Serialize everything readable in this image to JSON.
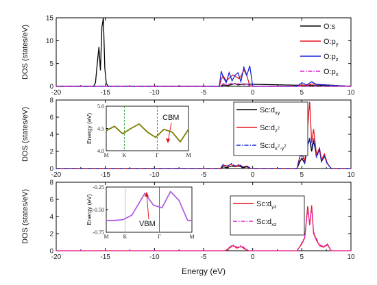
{
  "chart_data": [
    {
      "type": "line",
      "panel": "top",
      "ylabel": "DOS (states/eV)",
      "xlim": [
        -20,
        10
      ],
      "ylim": [
        0,
        15
      ],
      "xticks": [
        "-20",
        "-15",
        "-10",
        "-5",
        "0",
        "5",
        "10"
      ],
      "yticks": [
        "0",
        "5",
        "10",
        "15"
      ],
      "legend_position": "top-right",
      "series": [
        {
          "name": "O:s",
          "color": "#000000",
          "dash": "solid",
          "x": [
            -20,
            -16.2,
            -16.0,
            -15.8,
            -15.65,
            -15.5,
            -15.35,
            -15.2,
            -15.05,
            -14.9,
            -14.7,
            -5,
            -3.3,
            -3.0,
            -2.5,
            -1.8,
            -1.5,
            -1.0,
            10
          ],
          "y": [
            0,
            0,
            0.8,
            5.5,
            8.6,
            3.5,
            13.0,
            15.0,
            4.0,
            0.6,
            0,
            0,
            0,
            0.3,
            0.2,
            0.6,
            0.3,
            0.5,
            0
          ]
        },
        {
          "name": "O:p_y",
          "color": "#e8141c",
          "dash": "solid",
          "x": [
            -20,
            -3.4,
            -3.2,
            -3.0,
            -2.7,
            -2.3,
            -2.0,
            -1.7,
            -1.4,
            -1.2,
            -0.9,
            -0.6,
            -0.3,
            0,
            4.5,
            5.0,
            5.5,
            6.0,
            10
          ],
          "y": [
            0,
            0,
            1.5,
            2.3,
            1.2,
            2.0,
            2.5,
            2.1,
            1.7,
            2.2,
            3.6,
            2.3,
            0.2,
            0,
            0,
            0.3,
            0.2,
            0.5,
            0
          ]
        },
        {
          "name": "O:p_z",
          "color": "#1826d6",
          "dash": "solid",
          "x": [
            -20,
            -3.4,
            -3.2,
            -3.0,
            -2.7,
            -2.4,
            -2.1,
            -1.8,
            -1.5,
            -1.2,
            -0.9,
            -0.6,
            -0.3,
            0,
            4.5,
            5.0,
            5.5,
            6.0,
            6.5,
            10
          ],
          "y": [
            0,
            0,
            3.3,
            2.0,
            0.8,
            3.0,
            1.2,
            2.4,
            3.0,
            1.0,
            4.2,
            2.4,
            4.5,
            0,
            0,
            0.8,
            0.3,
            1.0,
            0.4,
            0
          ]
        },
        {
          "name": "O:p_x",
          "color": "#e020c8",
          "dash": "dashdot",
          "x": [
            -20,
            -3.3,
            -3.0,
            -2.6,
            -2.2,
            -1.8,
            -1.4,
            -1.0,
            -0.6,
            -0.2,
            10
          ],
          "y": [
            0,
            0,
            0.6,
            0.3,
            0.7,
            0.4,
            0.6,
            0.3,
            0.5,
            0,
            0
          ]
        }
      ]
    },
    {
      "type": "line",
      "panel": "middle",
      "ylabel": "DOS (states/eV)",
      "xlim": [
        -20,
        10
      ],
      "ylim": [
        0,
        8
      ],
      "xticks": [
        "-20",
        "-15",
        "-10",
        "-5",
        "0",
        "5",
        "10"
      ],
      "yticks": [
        "0",
        "2",
        "4",
        "6",
        "8"
      ],
      "legend_position": "top-right",
      "series": [
        {
          "name": "Sc:d_xy",
          "color": "#000000",
          "dash": "solid",
          "x": [
            -20,
            -3.3,
            -3.0,
            -2.6,
            -2.2,
            -1.8,
            -1.4,
            -1.0,
            -0.6,
            -0.2,
            4.5,
            4.8,
            5.0,
            5.3,
            5.6,
            5.8,
            6.0,
            6.2,
            6.5,
            6.8,
            7.0,
            7.3,
            7.6,
            8.0,
            10
          ],
          "y": [
            0,
            0,
            0.2,
            0.1,
            0.3,
            0.2,
            0.3,
            0.1,
            0.2,
            0,
            0,
            0.8,
            1.2,
            0.6,
            2.8,
            3.4,
            2.0,
            3.2,
            1.5,
            2.2,
            0.8,
            1.5,
            0.6,
            0,
            0
          ]
        },
        {
          "name": "Sc:d_z2",
          "color": "#e8141c",
          "dash": "solid",
          "x": [
            -20,
            -3.3,
            -3.0,
            -2.6,
            -2.2,
            -1.8,
            -1.4,
            -1.0,
            -0.6,
            -0.2,
            4.5,
            4.8,
            5.0,
            5.3,
            5.6,
            5.8,
            6.0,
            6.2,
            6.5,
            6.8,
            7.0,
            7.3,
            7.6,
            8.0,
            10
          ],
          "y": [
            0,
            0,
            0.4,
            0.3,
            0.5,
            0.2,
            0.4,
            0.2,
            0.3,
            0,
            0,
            1.5,
            1.9,
            0.8,
            5.0,
            7.8,
            3.0,
            4.6,
            1.6,
            2.4,
            1.0,
            1.7,
            0.6,
            0,
            0
          ]
        },
        {
          "name": "Sc:d_x2-y2",
          "color": "#1826d6",
          "dash": "dashdot",
          "x": [
            -20,
            -3.3,
            -3.0,
            -2.6,
            -2.2,
            -1.8,
            -1.4,
            -1.0,
            -0.6,
            -0.2,
            4.5,
            4.8,
            5.0,
            5.3,
            5.6,
            5.8,
            6.0,
            6.2,
            6.5,
            6.8,
            7.0,
            7.3,
            7.6,
            8.0,
            10
          ],
          "y": [
            0,
            0,
            0.5,
            0.2,
            0.6,
            0.3,
            0.5,
            0.2,
            0.3,
            0,
            0,
            1.2,
            1.6,
            0.7,
            2.6,
            3.6,
            2.4,
            3.5,
            1.2,
            2.4,
            0.8,
            1.4,
            0.5,
            0,
            0
          ]
        }
      ],
      "inset": {
        "ylabel": "Energy (eV)",
        "ylim": [
          4.0,
          5.0
        ],
        "yticks": [
          "4.0",
          "4.5",
          "5.0"
        ],
        "kpoint_labels": [
          "M",
          "K",
          "Γ",
          "M"
        ],
        "annotation": "CBM",
        "series": [
          {
            "color": "#7a7a00",
            "x": [
              0,
              0.1,
              0.2,
              0.3,
              0.4,
              0.5,
              0.6,
              0.7,
              0.8,
              0.9,
              1.0
            ],
            "y": [
              4.45,
              4.55,
              4.38,
              4.5,
              4.6,
              4.42,
              4.3,
              4.48,
              4.42,
              4.2,
              4.48
            ]
          }
        ]
      }
    },
    {
      "type": "line",
      "panel": "bottom",
      "ylabel": "DOS (states/eV)",
      "xlabel": "Energy (eV)",
      "xlim": [
        -20,
        10
      ],
      "ylim": [
        0,
        8
      ],
      "xticks": [
        "-20",
        "-15",
        "-10",
        "-5",
        "0",
        "5",
        "10"
      ],
      "yticks": [
        "0",
        "2",
        "4",
        "6",
        "8"
      ],
      "legend_position": "top-right",
      "series": [
        {
          "name": "Sc:d_yz",
          "color": "#e8141c",
          "dash": "solid",
          "x": [
            -20,
            -2.8,
            -2.5,
            -2.0,
            -1.6,
            -1.2,
            -0.8,
            -0.4,
            4.5,
            5.0,
            5.3,
            5.6,
            5.8,
            6.0,
            6.2,
            6.5,
            6.8,
            7.2,
            7.6,
            8.0,
            10
          ],
          "y": [
            0,
            0,
            0.2,
            0.6,
            0.3,
            0.5,
            0.2,
            0,
            0,
            0.8,
            1.5,
            5.2,
            3.0,
            5.3,
            2.0,
            1.2,
            0.6,
            0.4,
            0.7,
            0,
            0
          ]
        },
        {
          "name": "Sc:d_xz",
          "color": "#e020c8",
          "dash": "dashdot",
          "x": [
            -20,
            -2.8,
            -2.5,
            -2.0,
            -1.6,
            -1.2,
            -0.8,
            -0.4,
            4.5,
            5.0,
            5.3,
            5.6,
            5.8,
            6.0,
            6.2,
            6.5,
            6.8,
            7.2,
            7.6,
            8.0,
            10
          ],
          "y": [
            0,
            0,
            0.3,
            0.7,
            0.4,
            0.6,
            0.3,
            0,
            0,
            0.9,
            1.6,
            4.8,
            3.2,
            4.9,
            2.2,
            1.4,
            0.7,
            0.5,
            0.8,
            0,
            0
          ]
        }
      ],
      "inset": {
        "ylabel": "Energy (eV)",
        "ylim": [
          -0.75,
          -0.25
        ],
        "yticks": [
          "-0.25",
          "-0.50",
          "-0.75"
        ],
        "kpoint_labels": [
          "M",
          "K",
          "Γ",
          "M"
        ],
        "annotation": "VBM",
        "series": [
          {
            "color": "#b060e0",
            "x": [
              0,
              0.1,
              0.2,
              0.3,
              0.4,
              0.45,
              0.55,
              0.65,
              0.75,
              0.85,
              0.95,
              1.0
            ],
            "y": [
              -0.62,
              -0.62,
              -0.61,
              -0.56,
              -0.4,
              -0.32,
              -0.45,
              -0.48,
              -0.3,
              -0.4,
              -0.62,
              -0.62
            ]
          }
        ]
      }
    }
  ],
  "legends": {
    "top": [
      {
        "base": "O:",
        "main": "s",
        "sup": "",
        "color": "#000000",
        "dash": "solid"
      },
      {
        "base": "O:",
        "main": "p",
        "sub": "y",
        "color": "#e8141c",
        "dash": "solid"
      },
      {
        "base": "O:",
        "main": "p",
        "sub": "z",
        "color": "#1826d6",
        "dash": "solid"
      },
      {
        "base": "O:",
        "main": "p",
        "sub": "x",
        "color": "#e020c8",
        "dash": "dashdot"
      }
    ],
    "middle": [
      {
        "base": "Sc:",
        "main": "d",
        "sub": "xy",
        "color": "#000000",
        "dash": "solid"
      },
      {
        "base": "Sc:",
        "main": "d",
        "sub": "z",
        "subsup": "2",
        "color": "#e8141c",
        "dash": "solid"
      },
      {
        "base": "Sc:",
        "main": "d",
        "sub": "x",
        "subsup": "2",
        "subtail": "-y",
        "subsup2": "2",
        "color": "#1826d6",
        "dash": "dashdot"
      }
    ],
    "bottom": [
      {
        "base": "Sc:",
        "main": "d",
        "sub": "yz",
        "color": "#e8141c",
        "dash": "solid"
      },
      {
        "base": "Sc:",
        "main": "d",
        "sub": "xz",
        "color": "#e020c8",
        "dash": "dashdot"
      }
    ]
  }
}
